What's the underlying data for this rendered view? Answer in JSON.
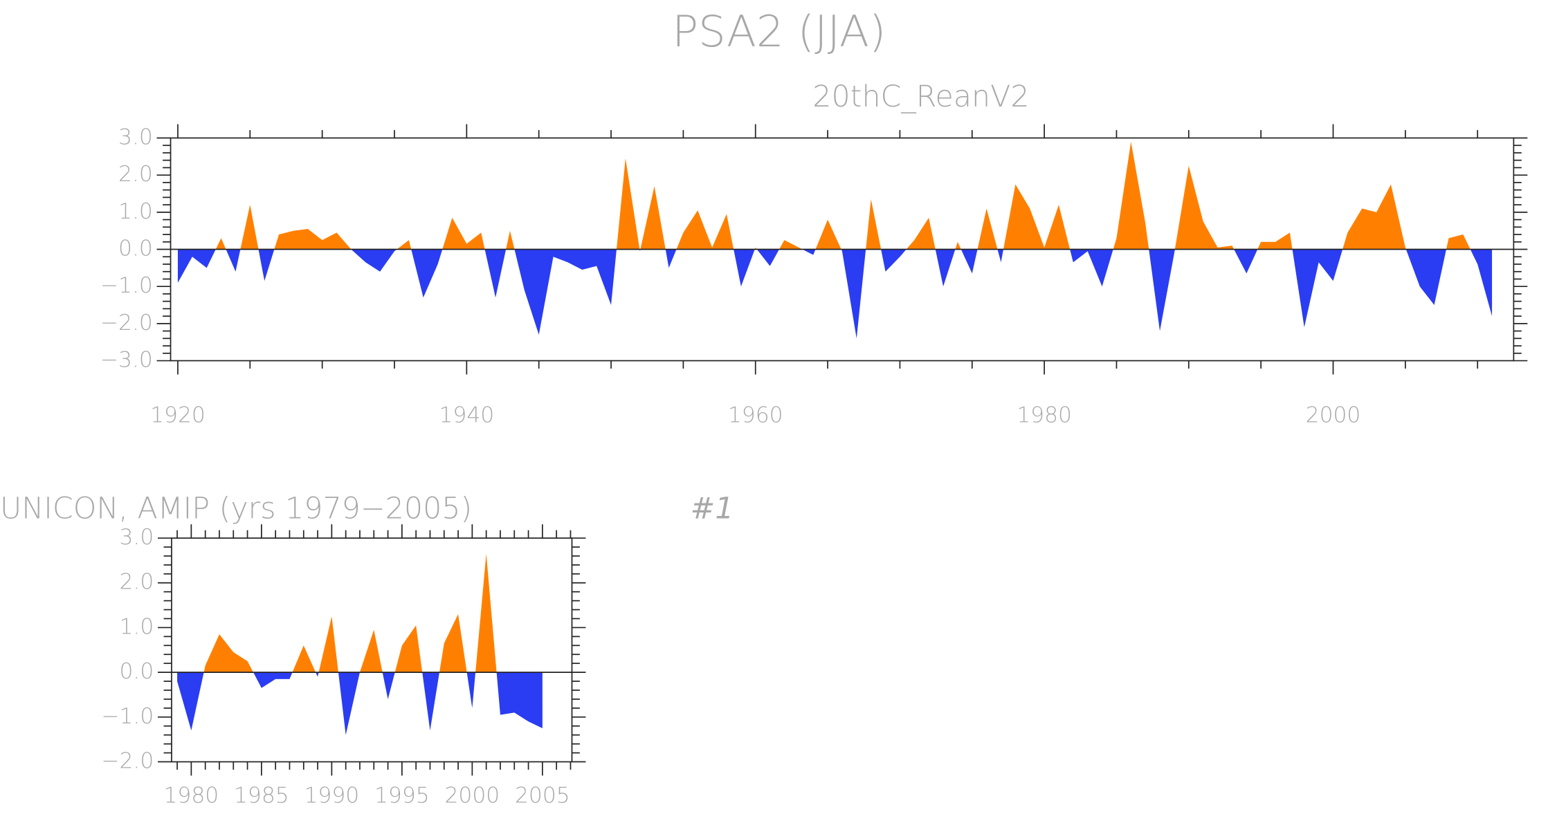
{
  "chart_data": [
    {
      "type": "area",
      "title": "PSA2 (JJA)",
      "subtitle": "20thC_ReanV2",
      "x": [
        1920,
        1921,
        1922,
        1923,
        1924,
        1925,
        1926,
        1927,
        1928,
        1929,
        1930,
        1931,
        1932,
        1933,
        1934,
        1935,
        1936,
        1937,
        1938,
        1939,
        1940,
        1941,
        1942,
        1943,
        1944,
        1945,
        1946,
        1947,
        1948,
        1949,
        1950,
        1951,
        1952,
        1953,
        1954,
        1955,
        1956,
        1957,
        1958,
        1959,
        1960,
        1961,
        1962,
        1963,
        1964,
        1965,
        1966,
        1967,
        1968,
        1969,
        1970,
        1971,
        1972,
        1973,
        1974,
        1975,
        1976,
        1977,
        1978,
        1979,
        1980,
        1981,
        1982,
        1983,
        1984,
        1985,
        1986,
        1987,
        1988,
        1989,
        1990,
        1991,
        1992,
        1993,
        1994,
        1995,
        1996,
        1997,
        1998,
        1999,
        2000,
        2001,
        2002,
        2003,
        2004,
        2005,
        2006,
        2007,
        2008,
        2009,
        2010,
        2011
      ],
      "values": [
        -0.9,
        -0.2,
        -0.5,
        0.3,
        -0.6,
        1.2,
        -0.85,
        0.4,
        0.5,
        0.55,
        0.25,
        0.45,
        0.0,
        -0.35,
        -0.6,
        -0.05,
        0.25,
        -1.3,
        -0.4,
        0.85,
        0.15,
        0.45,
        -1.3,
        0.5,
        -1.1,
        -2.3,
        -0.2,
        -0.35,
        -0.55,
        -0.45,
        -1.5,
        2.45,
        -0.05,
        1.7,
        -0.5,
        0.45,
        1.05,
        0.05,
        0.95,
        -1.0,
        0.05,
        -0.45,
        0.25,
        0.05,
        -0.15,
        0.8,
        -0.05,
        -2.4,
        1.35,
        -0.6,
        -0.2,
        0.25,
        0.85,
        -1.0,
        0.2,
        -0.65,
        1.1,
        -0.35,
        1.75,
        1.1,
        0.05,
        1.2,
        -0.35,
        -0.05,
        -1.0,
        0.3,
        2.9,
        0.7,
        -2.2,
        -0.1,
        2.25,
        0.75,
        0.05,
        0.1,
        -0.65,
        0.2,
        0.2,
        0.45,
        -2.1,
        -0.35,
        -0.85,
        0.45,
        1.1,
        1.0,
        1.75,
        0.05,
        -1.0,
        -1.5,
        0.3,
        0.4,
        -0.4,
        -1.8
      ],
      "above_color": "#ff8000",
      "below_color": "#2a3df2",
      "xlim": [
        1919.5,
        2012.5
      ],
      "xticks": [
        1920,
        1940,
        1960,
        1980,
        2000
      ],
      "ylim": [
        -3,
        3
      ],
      "yticks": [
        {
          "value": -3,
          "label": "−3.0"
        },
        {
          "value": -2,
          "label": "−2.0"
        },
        {
          "value": -1,
          "label": "−1.0"
        },
        {
          "value": 0,
          "label": "0.0"
        },
        {
          "value": 1,
          "label": "1.0"
        },
        {
          "value": 2,
          "label": "2.0"
        },
        {
          "value": 3,
          "label": "3.0"
        }
      ],
      "x_minor_divisions": 4,
      "y_minor_divisions": 5
    },
    {
      "type": "area",
      "title": "UNICON, AMIP (yrs 1979−2005)",
      "annotation": "#1",
      "x": [
        1979,
        1980,
        1981,
        1982,
        1983,
        1984,
        1985,
        1986,
        1987,
        1988,
        1989,
        1990,
        1991,
        1992,
        1993,
        1994,
        1995,
        1996,
        1997,
        1998,
        1999,
        2000,
        2001,
        2002,
        2003,
        2004,
        2005
      ],
      "values": [
        -0.2,
        -1.3,
        0.15,
        0.85,
        0.45,
        0.25,
        -0.35,
        -0.15,
        -0.15,
        0.6,
        -0.1,
        1.25,
        -1.4,
        0.0,
        0.95,
        -0.6,
        0.6,
        1.05,
        -1.3,
        0.65,
        1.3,
        -0.8,
        2.65,
        -0.95,
        -0.9,
        -1.1,
        -1.25
      ],
      "above_color": "#ff8000",
      "below_color": "#2a3df2",
      "xlim": [
        1978.6,
        2007.1
      ],
      "xticks": [
        1980,
        1985,
        1990,
        1995,
        2000,
        2005
      ],
      "ylim": [
        -2,
        3
      ],
      "yticks": [
        {
          "value": -2,
          "label": "−2.0"
        },
        {
          "value": -1,
          "label": "−1.0"
        },
        {
          "value": 0,
          "label": "0.0"
        },
        {
          "value": 1,
          "label": "1.0"
        },
        {
          "value": 2,
          "label": "2.0"
        },
        {
          "value": 3,
          "label": "3.0"
        }
      ],
      "x_minor_divisions": 5,
      "y_minor_divisions": 5
    }
  ]
}
